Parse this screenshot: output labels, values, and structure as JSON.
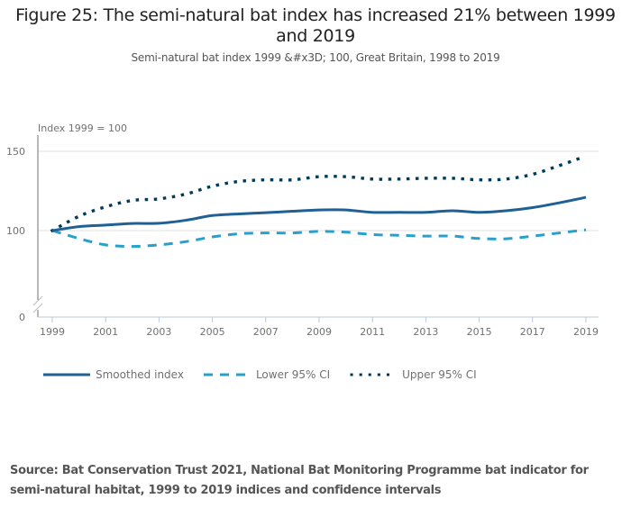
{
  "title": "Figure 25: The semi-natural bat index has increased 21% between 1999 and 2019",
  "subtitle": "Semi-natural bat index 1999 &#x3D; 100, Great Britain, 1998 to 2019",
  "source": "Source: Bat Conservation Trust 2021, National Bat Monitoring Programme bat indicator for semi-natural habitat, 1999 to 2019 indices and confidence intervals",
  "colors": {
    "smoothed": "#206095",
    "lower": "#27a0cc",
    "upper": "#003c57",
    "grid": "#e0e0e0",
    "axis": "#b8c8dc",
    "yaxis": "#707070"
  },
  "chart_data": {
    "type": "line",
    "title": "Figure 25: The semi-natural bat index has increased 21% between 1999 and 2019",
    "subtitle": "Semi-natural bat index 1999 &#x3D; 100, Great Britain, 1998 to 2019",
    "ylabel": "Index 1999 = 100",
    "xlabel": "",
    "x": [
      1999,
      2000,
      2001,
      2002,
      2003,
      2004,
      2005,
      2006,
      2007,
      2008,
      2009,
      2010,
      2011,
      2012,
      2013,
      2014,
      2015,
      2016,
      2017,
      2018,
      2019
    ],
    "x_ticks": [
      "1999",
      "2001",
      "2003",
      "2005",
      "2007",
      "2009",
      "2011",
      "2013",
      "2015",
      "2017",
      "2019"
    ],
    "y_ticks": [
      "0",
      "100",
      "150"
    ],
    "ylim": [
      0,
      150
    ],
    "y_axis_break": [
      0,
      100
    ],
    "grid": true,
    "legend_position": "bottom-left",
    "series": [
      {
        "name": "Smoothed index",
        "style": "solid",
        "values": [
          100,
          102.5,
          103.5,
          104.5,
          104.6,
          106.5,
          109.5,
          110.5,
          111.3,
          112.2,
          113,
          113,
          111.5,
          111.5,
          111.5,
          112.5,
          111.5,
          112.5,
          114.5,
          117.5,
          121
        ]
      },
      {
        "name": "Lower 95% CI",
        "style": "dashed",
        "values": [
          100,
          95,
          91,
          90,
          91,
          93,
          96,
          98,
          98.5,
          98.5,
          99.5,
          99,
          97.5,
          97,
          96.5,
          96.5,
          95,
          94.8,
          96.5,
          98.5,
          100.5
        ]
      },
      {
        "name": "Upper 95% CI",
        "style": "dotted",
        "values": [
          100,
          109,
          115,
          119,
          120,
          123,
          128,
          131,
          132,
          132,
          134,
          134,
          132.5,
          132.5,
          133,
          133,
          132,
          132.5,
          135.5,
          141,
          147
        ]
      }
    ]
  }
}
